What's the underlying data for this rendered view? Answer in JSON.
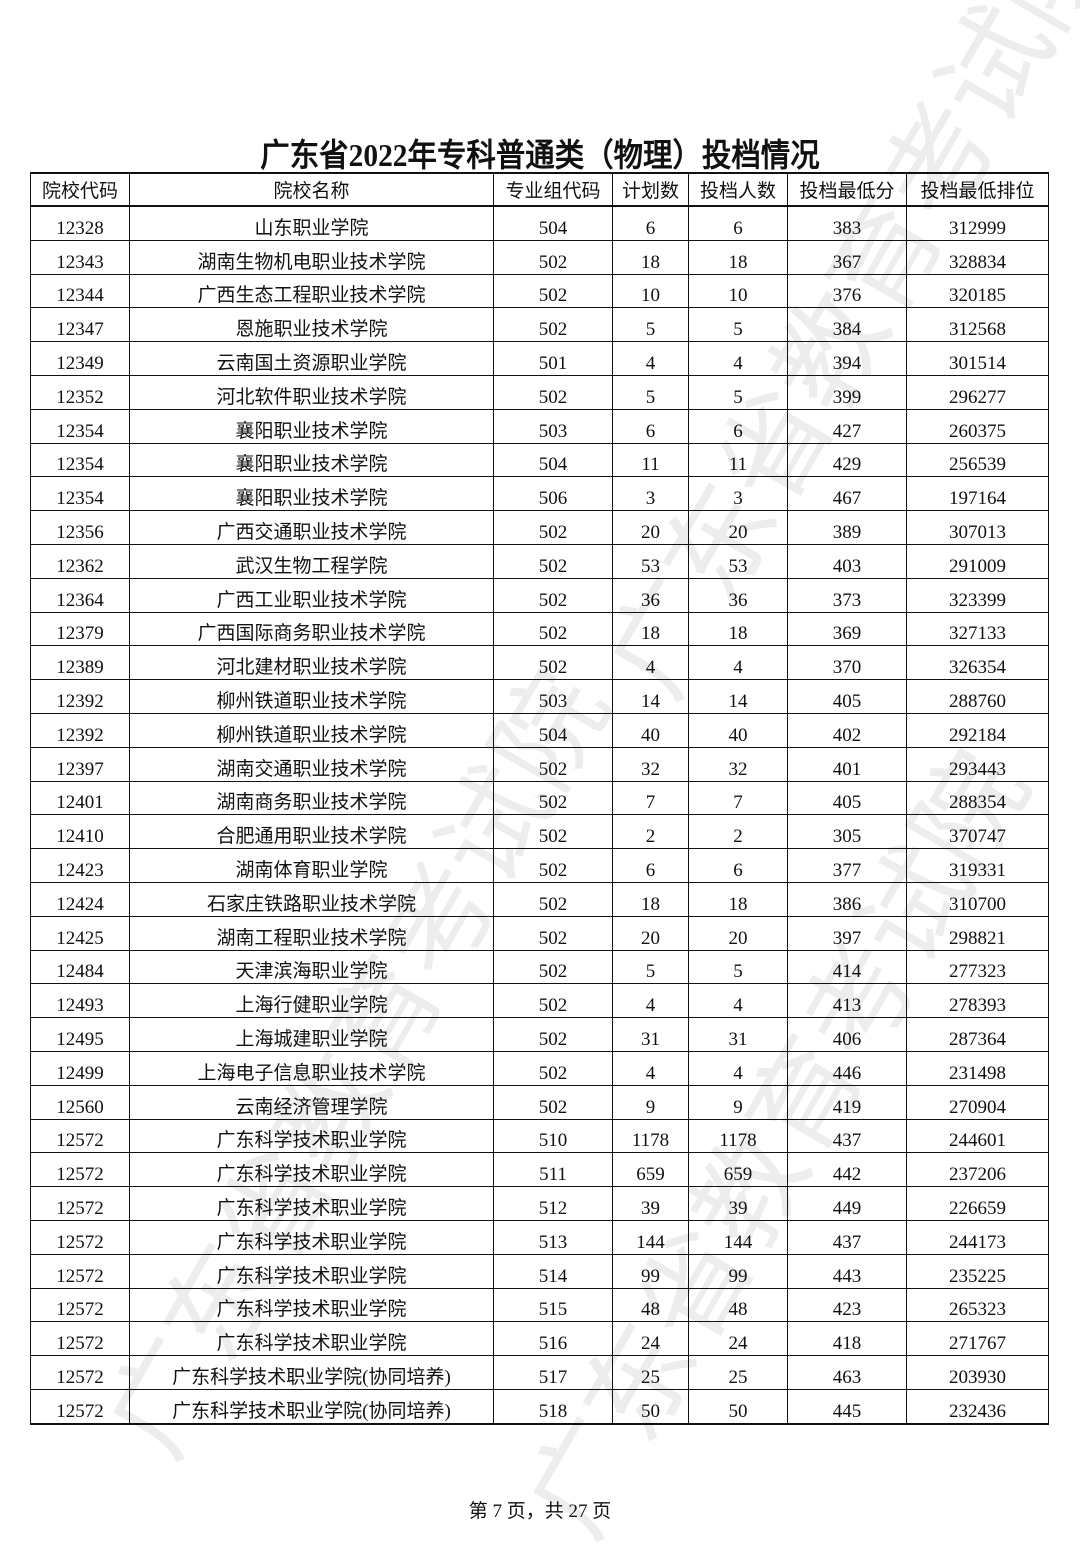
{
  "watermark": "广东省教育考试院",
  "title": "广东省2022年专科普通类（物理）投档情况",
  "columns": [
    "院校代码",
    "院校名称",
    "专业组代码",
    "计划数",
    "投档人数",
    "投档最低分",
    "投档最低排位"
  ],
  "rows": [
    [
      "12328",
      "山东职业学院",
      "504",
      "6",
      "6",
      "383",
      "312999"
    ],
    [
      "12343",
      "湖南生物机电职业技术学院",
      "502",
      "18",
      "18",
      "367",
      "328834"
    ],
    [
      "12344",
      "广西生态工程职业技术学院",
      "502",
      "10",
      "10",
      "376",
      "320185"
    ],
    [
      "12347",
      "恩施职业技术学院",
      "502",
      "5",
      "5",
      "384",
      "312568"
    ],
    [
      "12349",
      "云南国土资源职业学院",
      "501",
      "4",
      "4",
      "394",
      "301514"
    ],
    [
      "12352",
      "河北软件职业技术学院",
      "502",
      "5",
      "5",
      "399",
      "296277"
    ],
    [
      "12354",
      "襄阳职业技术学院",
      "503",
      "6",
      "6",
      "427",
      "260375"
    ],
    [
      "12354",
      "襄阳职业技术学院",
      "504",
      "11",
      "11",
      "429",
      "256539"
    ],
    [
      "12354",
      "襄阳职业技术学院",
      "506",
      "3",
      "3",
      "467",
      "197164"
    ],
    [
      "12356",
      "广西交通职业技术学院",
      "502",
      "20",
      "20",
      "389",
      "307013"
    ],
    [
      "12362",
      "武汉生物工程学院",
      "502",
      "53",
      "53",
      "403",
      "291009"
    ],
    [
      "12364",
      "广西工业职业技术学院",
      "502",
      "36",
      "36",
      "373",
      "323399"
    ],
    [
      "12379",
      "广西国际商务职业技术学院",
      "502",
      "18",
      "18",
      "369",
      "327133"
    ],
    [
      "12389",
      "河北建材职业技术学院",
      "502",
      "4",
      "4",
      "370",
      "326354"
    ],
    [
      "12392",
      "柳州铁道职业技术学院",
      "503",
      "14",
      "14",
      "405",
      "288760"
    ],
    [
      "12392",
      "柳州铁道职业技术学院",
      "504",
      "40",
      "40",
      "402",
      "292184"
    ],
    [
      "12397",
      "湖南交通职业技术学院",
      "502",
      "32",
      "32",
      "401",
      "293443"
    ],
    [
      "12401",
      "湖南商务职业技术学院",
      "502",
      "7",
      "7",
      "405",
      "288354"
    ],
    [
      "12410",
      "合肥通用职业技术学院",
      "502",
      "2",
      "2",
      "305",
      "370747"
    ],
    [
      "12423",
      "湖南体育职业学院",
      "502",
      "6",
      "6",
      "377",
      "319331"
    ],
    [
      "12424",
      "石家庄铁路职业技术学院",
      "502",
      "18",
      "18",
      "386",
      "310700"
    ],
    [
      "12425",
      "湖南工程职业技术学院",
      "502",
      "20",
      "20",
      "397",
      "298821"
    ],
    [
      "12484",
      "天津滨海职业学院",
      "502",
      "5",
      "5",
      "414",
      "277323"
    ],
    [
      "12493",
      "上海行健职业学院",
      "502",
      "4",
      "4",
      "413",
      "278393"
    ],
    [
      "12495",
      "上海城建职业学院",
      "502",
      "31",
      "31",
      "406",
      "287364"
    ],
    [
      "12499",
      "上海电子信息职业技术学院",
      "502",
      "4",
      "4",
      "446",
      "231498"
    ],
    [
      "12560",
      "云南经济管理学院",
      "502",
      "9",
      "9",
      "419",
      "270904"
    ],
    [
      "12572",
      "广东科学技术职业学院",
      "510",
      "1178",
      "1178",
      "437",
      "244601"
    ],
    [
      "12572",
      "广东科学技术职业学院",
      "511",
      "659",
      "659",
      "442",
      "237206"
    ],
    [
      "12572",
      "广东科学技术职业学院",
      "512",
      "39",
      "39",
      "449",
      "226659"
    ],
    [
      "12572",
      "广东科学技术职业学院",
      "513",
      "144",
      "144",
      "437",
      "244173"
    ],
    [
      "12572",
      "广东科学技术职业学院",
      "514",
      "99",
      "99",
      "443",
      "235225"
    ],
    [
      "12572",
      "广东科学技术职业学院",
      "515",
      "48",
      "48",
      "423",
      "265323"
    ],
    [
      "12572",
      "广东科学技术职业学院",
      "516",
      "24",
      "24",
      "418",
      "271767"
    ],
    [
      "12572",
      "广东科学技术职业学院(协同培养)",
      "517",
      "25",
      "25",
      "463",
      "203930"
    ],
    [
      "12572",
      "广东科学技术职业学院(协同培养)",
      "518",
      "50",
      "50",
      "445",
      "232436"
    ]
  ],
  "footer": "第 7 页，共 27 页"
}
